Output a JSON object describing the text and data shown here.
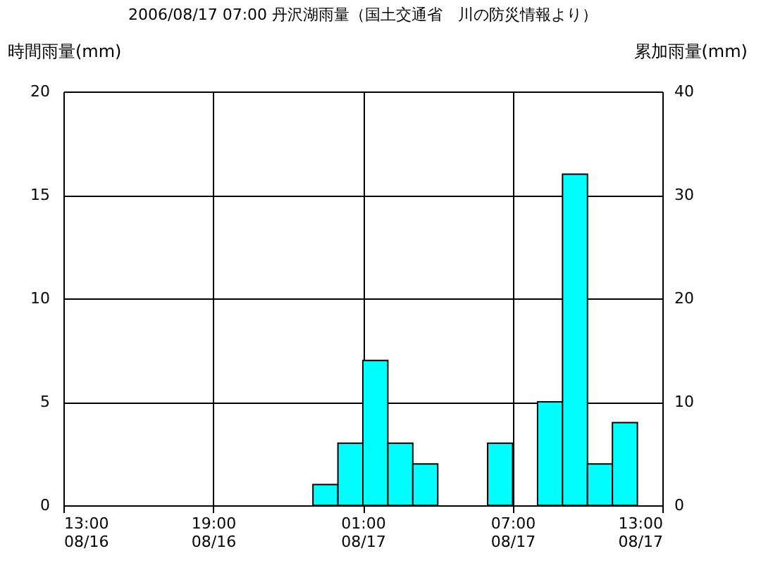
{
  "chart_data": {
    "type": "bar",
    "title": "2006/08/17 07:00 丹沢湖雨量（国土交通省　川の防災情報より）",
    "ylabel": "時間雨量(mm)",
    "y2label": "累加雨量(mm)",
    "x": [
      "2006-08-16T13:30",
      "2006-08-16T14:30",
      "2006-08-16T15:30",
      "2006-08-16T16:30",
      "2006-08-16T17:30",
      "2006-08-16T18:30",
      "2006-08-16T19:30",
      "2006-08-16T20:30",
      "2006-08-16T21:30",
      "2006-08-16T22:30",
      "2006-08-16T23:30",
      "2006-08-17T00:30",
      "2006-08-17T01:30",
      "2006-08-17T02:30",
      "2006-08-17T03:30",
      "2006-08-17T04:30",
      "2006-08-17T05:30",
      "2006-08-17T06:30",
      "2006-08-17T07:30",
      "2006-08-17T08:30",
      "2006-08-17T09:30",
      "2006-08-17T10:30",
      "2006-08-17T11:30",
      "2006-08-17T12:30"
    ],
    "series": [
      {
        "color": "#00ffff",
        "values": [
          0,
          0,
          0,
          0,
          0,
          0,
          0,
          0,
          0,
          0,
          1,
          3,
          7,
          3,
          2,
          0,
          0,
          3,
          0,
          5,
          16,
          2,
          4,
          0
        ]
      }
    ],
    "xlim": [
      "2006-08-16T13:00",
      "2006-08-17T13:00"
    ],
    "xticks": [
      {
        "value": "2006-08-16T13:00",
        "label": "13:00\n08/16"
      },
      {
        "value": "2006-08-16T19:00",
        "label": "19:00\n08/16"
      },
      {
        "value": "2006-08-17T01:00",
        "label": "01:00\n08/17"
      },
      {
        "value": "2006-08-17T07:00",
        "label": "07:00\n08/17"
      },
      {
        "value": "2006-08-17T13:00",
        "label": "13:00\n08/17"
      }
    ],
    "ylim": [
      0,
      20
    ],
    "yticks": [
      0,
      5,
      10,
      15,
      20
    ],
    "y2lim": [
      0,
      40
    ],
    "y2ticks": [
      0,
      10,
      20,
      30,
      40
    ],
    "grid": true,
    "legend": false
  }
}
